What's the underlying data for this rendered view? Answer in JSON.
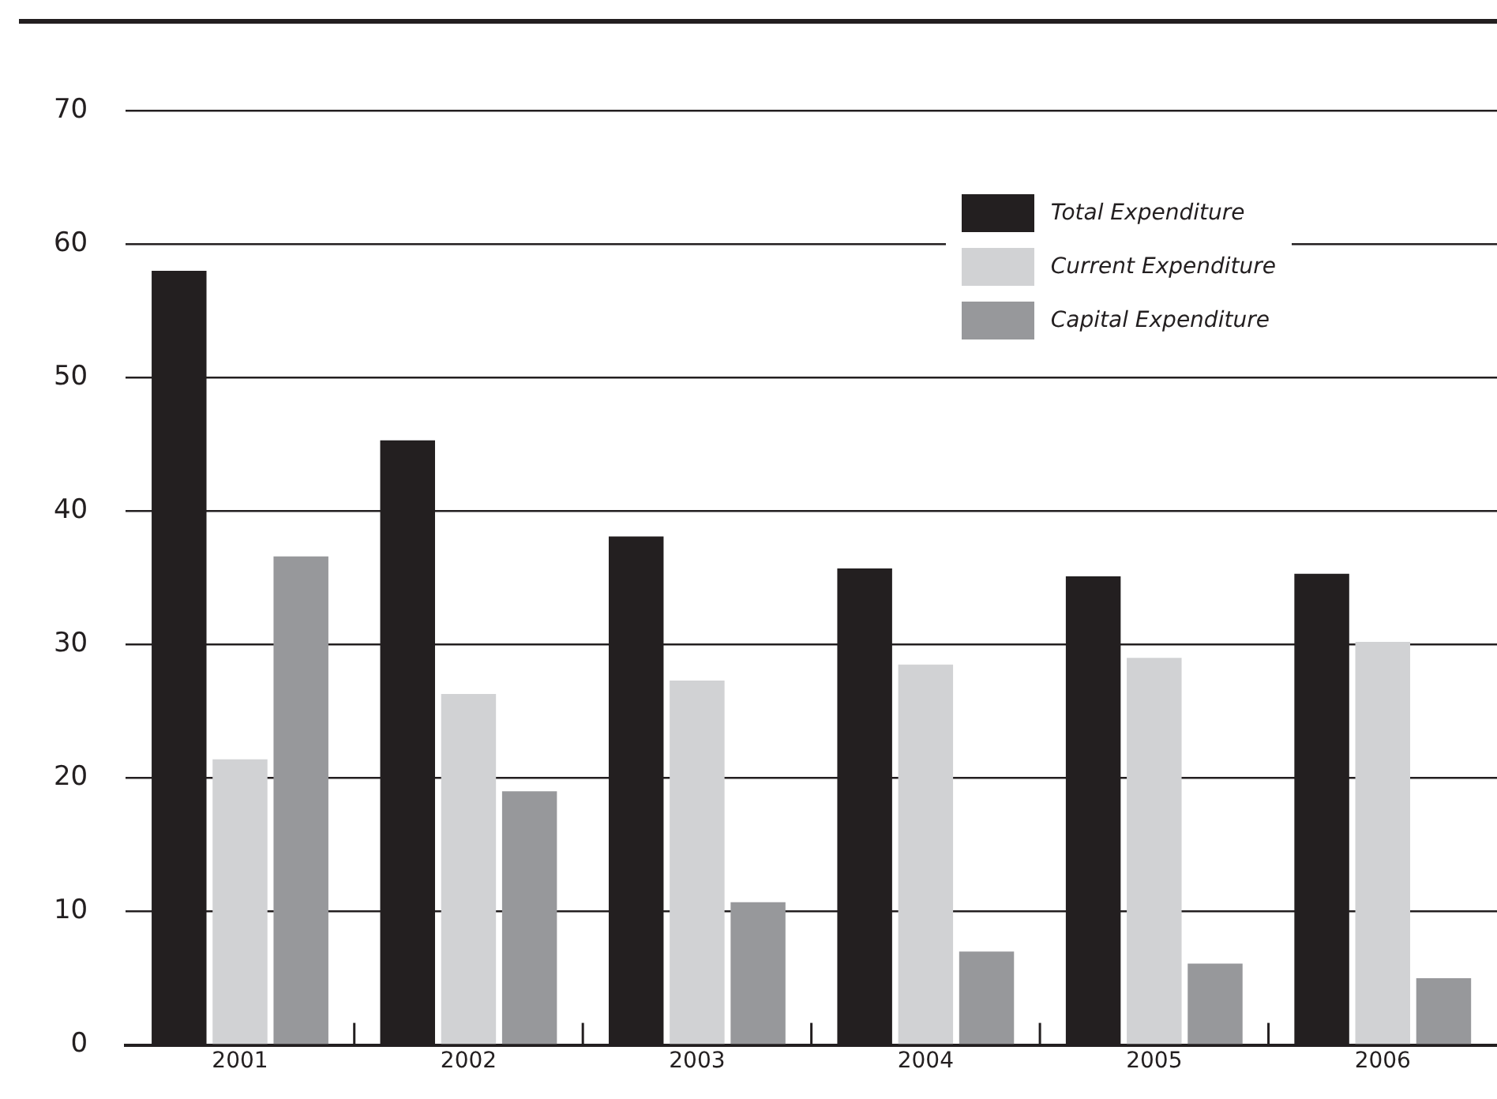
{
  "chart_data": {
    "type": "bar",
    "categories": [
      "2001",
      "2002",
      "2003",
      "2004",
      "2005",
      "2006"
    ],
    "series": [
      {
        "name": "Total Expenditure",
        "color": "#231f20",
        "values": [
          58.0,
          45.3,
          38.1,
          35.7,
          35.1,
          35.3
        ]
      },
      {
        "name": "Current Expenditure",
        "color": "#d1d2d4",
        "values": [
          21.4,
          26.3,
          27.3,
          28.5,
          29.0,
          30.2
        ]
      },
      {
        "name": "Capital Expenditure",
        "color": "#97989b",
        "values": [
          36.6,
          19.0,
          10.7,
          7.0,
          6.1,
          5.0
        ]
      }
    ],
    "ylim": [
      0,
      70
    ],
    "yticks": [
      0,
      10,
      20,
      30,
      40,
      50,
      60,
      70
    ],
    "grid": "y",
    "legend": "top right"
  }
}
